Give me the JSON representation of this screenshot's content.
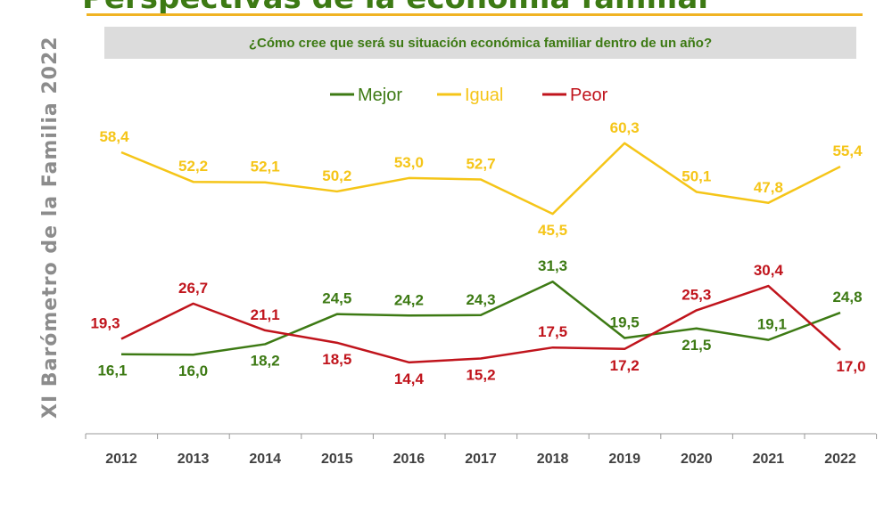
{
  "header": {
    "title": "Perspectivas de la economía familiar",
    "question": "¿Cómo cree que será su situación económica familiar dentro de un año?"
  },
  "side_label": "XI  Barómetro de la Familia  2022",
  "chart_data": {
    "type": "line",
    "title": "¿Cómo cree que será su situación económica familiar dentro de un año?",
    "categories": [
      "2012",
      "2013",
      "2014",
      "2015",
      "2016",
      "2017",
      "2018",
      "2019",
      "2020",
      "2021",
      "2022"
    ],
    "ylim": [
      0,
      80
    ],
    "grid": false,
    "legend": "top",
    "series": [
      {
        "name": "Mejor",
        "color": "#3d7a14",
        "values": [
          16.1,
          16.0,
          18.2,
          24.5,
          24.2,
          24.3,
          31.3,
          19.5,
          21.5,
          19.1,
          24.8
        ],
        "labels": [
          "16,1",
          "16,0",
          "18,2",
          "24,5",
          "24,2",
          "24,3",
          "31,3",
          "19,5",
          "21,5",
          "19,1",
          "24,8"
        ]
      },
      {
        "name": "Igual",
        "color": "#f5c518",
        "values": [
          58.4,
          52.2,
          52.1,
          50.2,
          53.0,
          52.7,
          45.5,
          60.3,
          50.1,
          47.8,
          55.4
        ],
        "labels": [
          "58,4",
          "52,2",
          "52,1",
          "50,2",
          "53,0",
          "52,7",
          "45,5",
          "60,3",
          "50,1",
          "47,8",
          "55,4"
        ]
      },
      {
        "name": "Peor",
        "color": "#c0141c",
        "values": [
          19.3,
          26.7,
          21.1,
          18.5,
          14.4,
          15.2,
          17.5,
          17.2,
          25.3,
          30.4,
          17.0
        ],
        "labels": [
          "19,3",
          "26,7",
          "21,1",
          "18,5",
          "14,4",
          "15,2",
          "17,5",
          "17,2",
          "25,3",
          "30,4",
          "17,0"
        ]
      }
    ]
  }
}
